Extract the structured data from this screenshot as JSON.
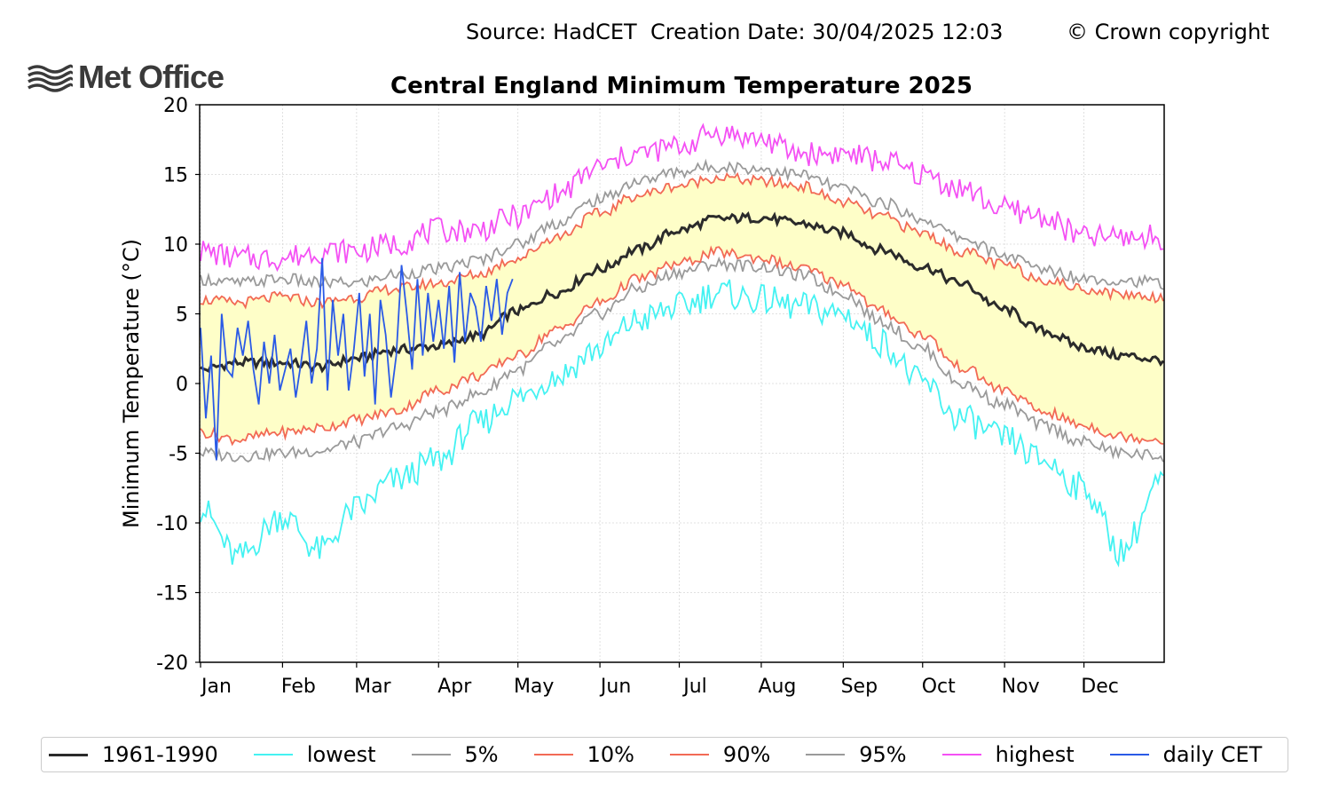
{
  "header": {
    "source": "Source: HadCET  Creation Date: 30/04/2025 12:03",
    "copyright": "© Crown copyright",
    "logo_text": "Met Office"
  },
  "colors": {
    "normal": "#2b2b2b",
    "lowest": "#44f2f2",
    "p5": "#9a9a9a",
    "p10": "#f26a55",
    "p90": "#f26a55",
    "p95": "#9a9a9a",
    "highest": "#f450f4",
    "daily": "#2a5ae6",
    "band": "#fefec8"
  },
  "chart_data": {
    "type": "line",
    "title": "Central England Minimum Temperature 2025",
    "xlabel": "",
    "ylabel": "Minimum Temperature (°C)",
    "ylim": [
      -20,
      20
    ],
    "yticks": [
      -20,
      -15,
      -10,
      -5,
      0,
      5,
      10,
      15,
      20
    ],
    "ytick_labels": [
      "-20",
      "-15",
      "-10",
      "-5",
      "0",
      "5",
      "10",
      "15",
      "20"
    ],
    "xlim_day_of_year": [
      1,
      365
    ],
    "months": [
      "Jan",
      "Feb",
      "Mar",
      "Apr",
      "May",
      "Jun",
      "Jul",
      "Aug",
      "Sep",
      "Oct",
      "Nov",
      "Dec"
    ],
    "month_start_days": [
      1,
      32,
      60,
      91,
      121,
      152,
      182,
      213,
      244,
      274,
      305,
      335
    ],
    "grid": true,
    "legend_position": "bottom",
    "shaded_band": "between 10% and 90%",
    "series": [
      {
        "key": "normal",
        "name": "1961-1990",
        "x": [
          1,
          15,
          32,
          46,
          60,
          74,
          91,
          105,
          121,
          135,
          152,
          166,
          182,
          196,
          213,
          227,
          244,
          258,
          274,
          288,
          305,
          319,
          335,
          349,
          365
        ],
        "values": [
          1.0,
          1.5,
          1.5,
          1.2,
          1.8,
          2.4,
          2.7,
          3.4,
          5.2,
          6.5,
          8.2,
          9.6,
          11.0,
          11.8,
          11.9,
          11.5,
          10.8,
          9.6,
          8.4,
          7.2,
          5.3,
          3.8,
          2.6,
          2.0,
          1.7
        ]
      },
      {
        "key": "lowest",
        "name": "lowest",
        "x": [
          1,
          15,
          32,
          46,
          60,
          74,
          91,
          105,
          121,
          135,
          152,
          166,
          182,
          196,
          213,
          227,
          244,
          258,
          274,
          288,
          305,
          319,
          335,
          349,
          365
        ],
        "values": [
          -9.0,
          -12.5,
          -9.5,
          -12.0,
          -9.0,
          -7.0,
          -5.5,
          -3.0,
          -1.0,
          0.5,
          2.5,
          4.5,
          5.5,
          6.5,
          6.0,
          5.5,
          5.0,
          3.0,
          0.0,
          -2.5,
          -4.0,
          -5.5,
          -7.5,
          -12.0,
          -7.0
        ]
      },
      {
        "key": "p5",
        "name": "5%",
        "x": [
          1,
          15,
          32,
          46,
          60,
          74,
          91,
          105,
          121,
          135,
          152,
          166,
          182,
          196,
          213,
          227,
          244,
          258,
          274,
          288,
          305,
          319,
          335,
          349,
          365
        ],
        "values": [
          -5.0,
          -5.2,
          -5.0,
          -4.8,
          -4.2,
          -3.2,
          -2.0,
          -0.8,
          1.0,
          2.8,
          5.0,
          6.8,
          8.0,
          8.6,
          8.4,
          7.8,
          6.5,
          4.5,
          2.5,
          0.0,
          -1.5,
          -3.0,
          -4.2,
          -5.0,
          -5.2
        ]
      },
      {
        "key": "p10",
        "name": "10%",
        "x": [
          1,
          15,
          32,
          46,
          60,
          74,
          91,
          105,
          121,
          135,
          152,
          166,
          182,
          196,
          213,
          227,
          244,
          258,
          274,
          288,
          305,
          319,
          335,
          349,
          365
        ],
        "values": [
          -3.5,
          -4.0,
          -3.5,
          -3.2,
          -2.6,
          -2.0,
          -0.5,
          0.5,
          2.0,
          3.8,
          5.8,
          7.5,
          8.6,
          9.4,
          9.0,
          8.3,
          7.2,
          5.2,
          3.5,
          1.2,
          -0.5,
          -2.0,
          -3.0,
          -3.8,
          -4.0
        ]
      },
      {
        "key": "p90",
        "name": "90%",
        "x": [
          1,
          15,
          32,
          46,
          60,
          74,
          91,
          105,
          121,
          135,
          152,
          166,
          182,
          196,
          213,
          227,
          244,
          258,
          274,
          288,
          305,
          319,
          335,
          349,
          365
        ],
        "values": [
          6.0,
          5.8,
          6.2,
          5.8,
          6.2,
          6.8,
          7.2,
          7.8,
          9.0,
          10.5,
          12.2,
          13.5,
          14.2,
          14.8,
          14.5,
          14.2,
          13.0,
          12.0,
          10.8,
          9.5,
          8.5,
          7.5,
          6.8,
          6.4,
          6.2
        ]
      },
      {
        "key": "p95",
        "name": "95%",
        "x": [
          1,
          15,
          32,
          46,
          60,
          74,
          91,
          105,
          121,
          135,
          152,
          166,
          182,
          196,
          213,
          227,
          244,
          258,
          274,
          288,
          305,
          319,
          335,
          349,
          365
        ],
        "values": [
          7.5,
          7.2,
          7.5,
          7.2,
          7.2,
          7.8,
          8.2,
          8.8,
          10.0,
          11.5,
          13.2,
          14.5,
          15.2,
          15.6,
          15.4,
          15.0,
          14.0,
          13.0,
          11.8,
          10.5,
          9.2,
          8.2,
          7.6,
          7.4,
          7.2
        ]
      },
      {
        "key": "highest",
        "name": "highest",
        "x": [
          1,
          15,
          32,
          46,
          60,
          74,
          91,
          105,
          121,
          135,
          152,
          166,
          182,
          196,
          213,
          227,
          244,
          258,
          274,
          288,
          305,
          319,
          335,
          349,
          365
        ],
        "values": [
          9.5,
          9.0,
          9.0,
          9.5,
          9.5,
          10.0,
          11.0,
          11.0,
          12.0,
          13.5,
          15.5,
          16.5,
          17.0,
          18.0,
          17.5,
          16.5,
          16.5,
          16.0,
          15.0,
          14.0,
          12.5,
          12.0,
          10.5,
          10.5,
          10.5
        ]
      },
      {
        "key": "daily",
        "name": "daily CET",
        "x": [
          1,
          3,
          5,
          7,
          9,
          11,
          13,
          15,
          17,
          19,
          21,
          23,
          25,
          27,
          29,
          31,
          33,
          35,
          37,
          39,
          41,
          43,
          45,
          47,
          49,
          51,
          53,
          55,
          57,
          59,
          61,
          63,
          65,
          67,
          69,
          71,
          73,
          75,
          77,
          79,
          81,
          83,
          85,
          87,
          89,
          91,
          93,
          95,
          97,
          99,
          101,
          103,
          105,
          107,
          109,
          111,
          113,
          115,
          117,
          119
        ],
        "values": [
          4.0,
          -2.5,
          2.0,
          -5.5,
          5.0,
          1.0,
          0.5,
          4.0,
          2.0,
          4.5,
          1.0,
          -1.5,
          3.0,
          0.0,
          3.5,
          -0.5,
          1.0,
          2.5,
          -1.0,
          1.5,
          4.5,
          0.0,
          2.5,
          9.0,
          -0.5,
          6.0,
          2.0,
          5.0,
          -0.5,
          2.5,
          6.5,
          0.5,
          5.0,
          -1.5,
          6.0,
          3.5,
          -1.0,
          2.0,
          8.5,
          5.0,
          1.0,
          7.5,
          2.0,
          6.5,
          3.0,
          6.0,
          2.5,
          7.0,
          1.5,
          8.0,
          3.0,
          6.5,
          5.5,
          3.0,
          7.0,
          4.5,
          7.5,
          3.5,
          6.5,
          7.5
        ]
      }
    ]
  },
  "legend": {
    "items": [
      {
        "label": "1961-1990",
        "color_key": "normal",
        "width": 3
      },
      {
        "label": "lowest",
        "color_key": "lowest",
        "width": 2
      },
      {
        "label": "5%",
        "color_key": "p5",
        "width": 2
      },
      {
        "label": "10%",
        "color_key": "p10",
        "width": 2
      },
      {
        "label": "90%",
        "color_key": "p90",
        "width": 2
      },
      {
        "label": "95%",
        "color_key": "p95",
        "width": 2
      },
      {
        "label": "highest",
        "color_key": "highest",
        "width": 2
      },
      {
        "label": "daily CET",
        "color_key": "daily",
        "width": 2
      }
    ]
  }
}
